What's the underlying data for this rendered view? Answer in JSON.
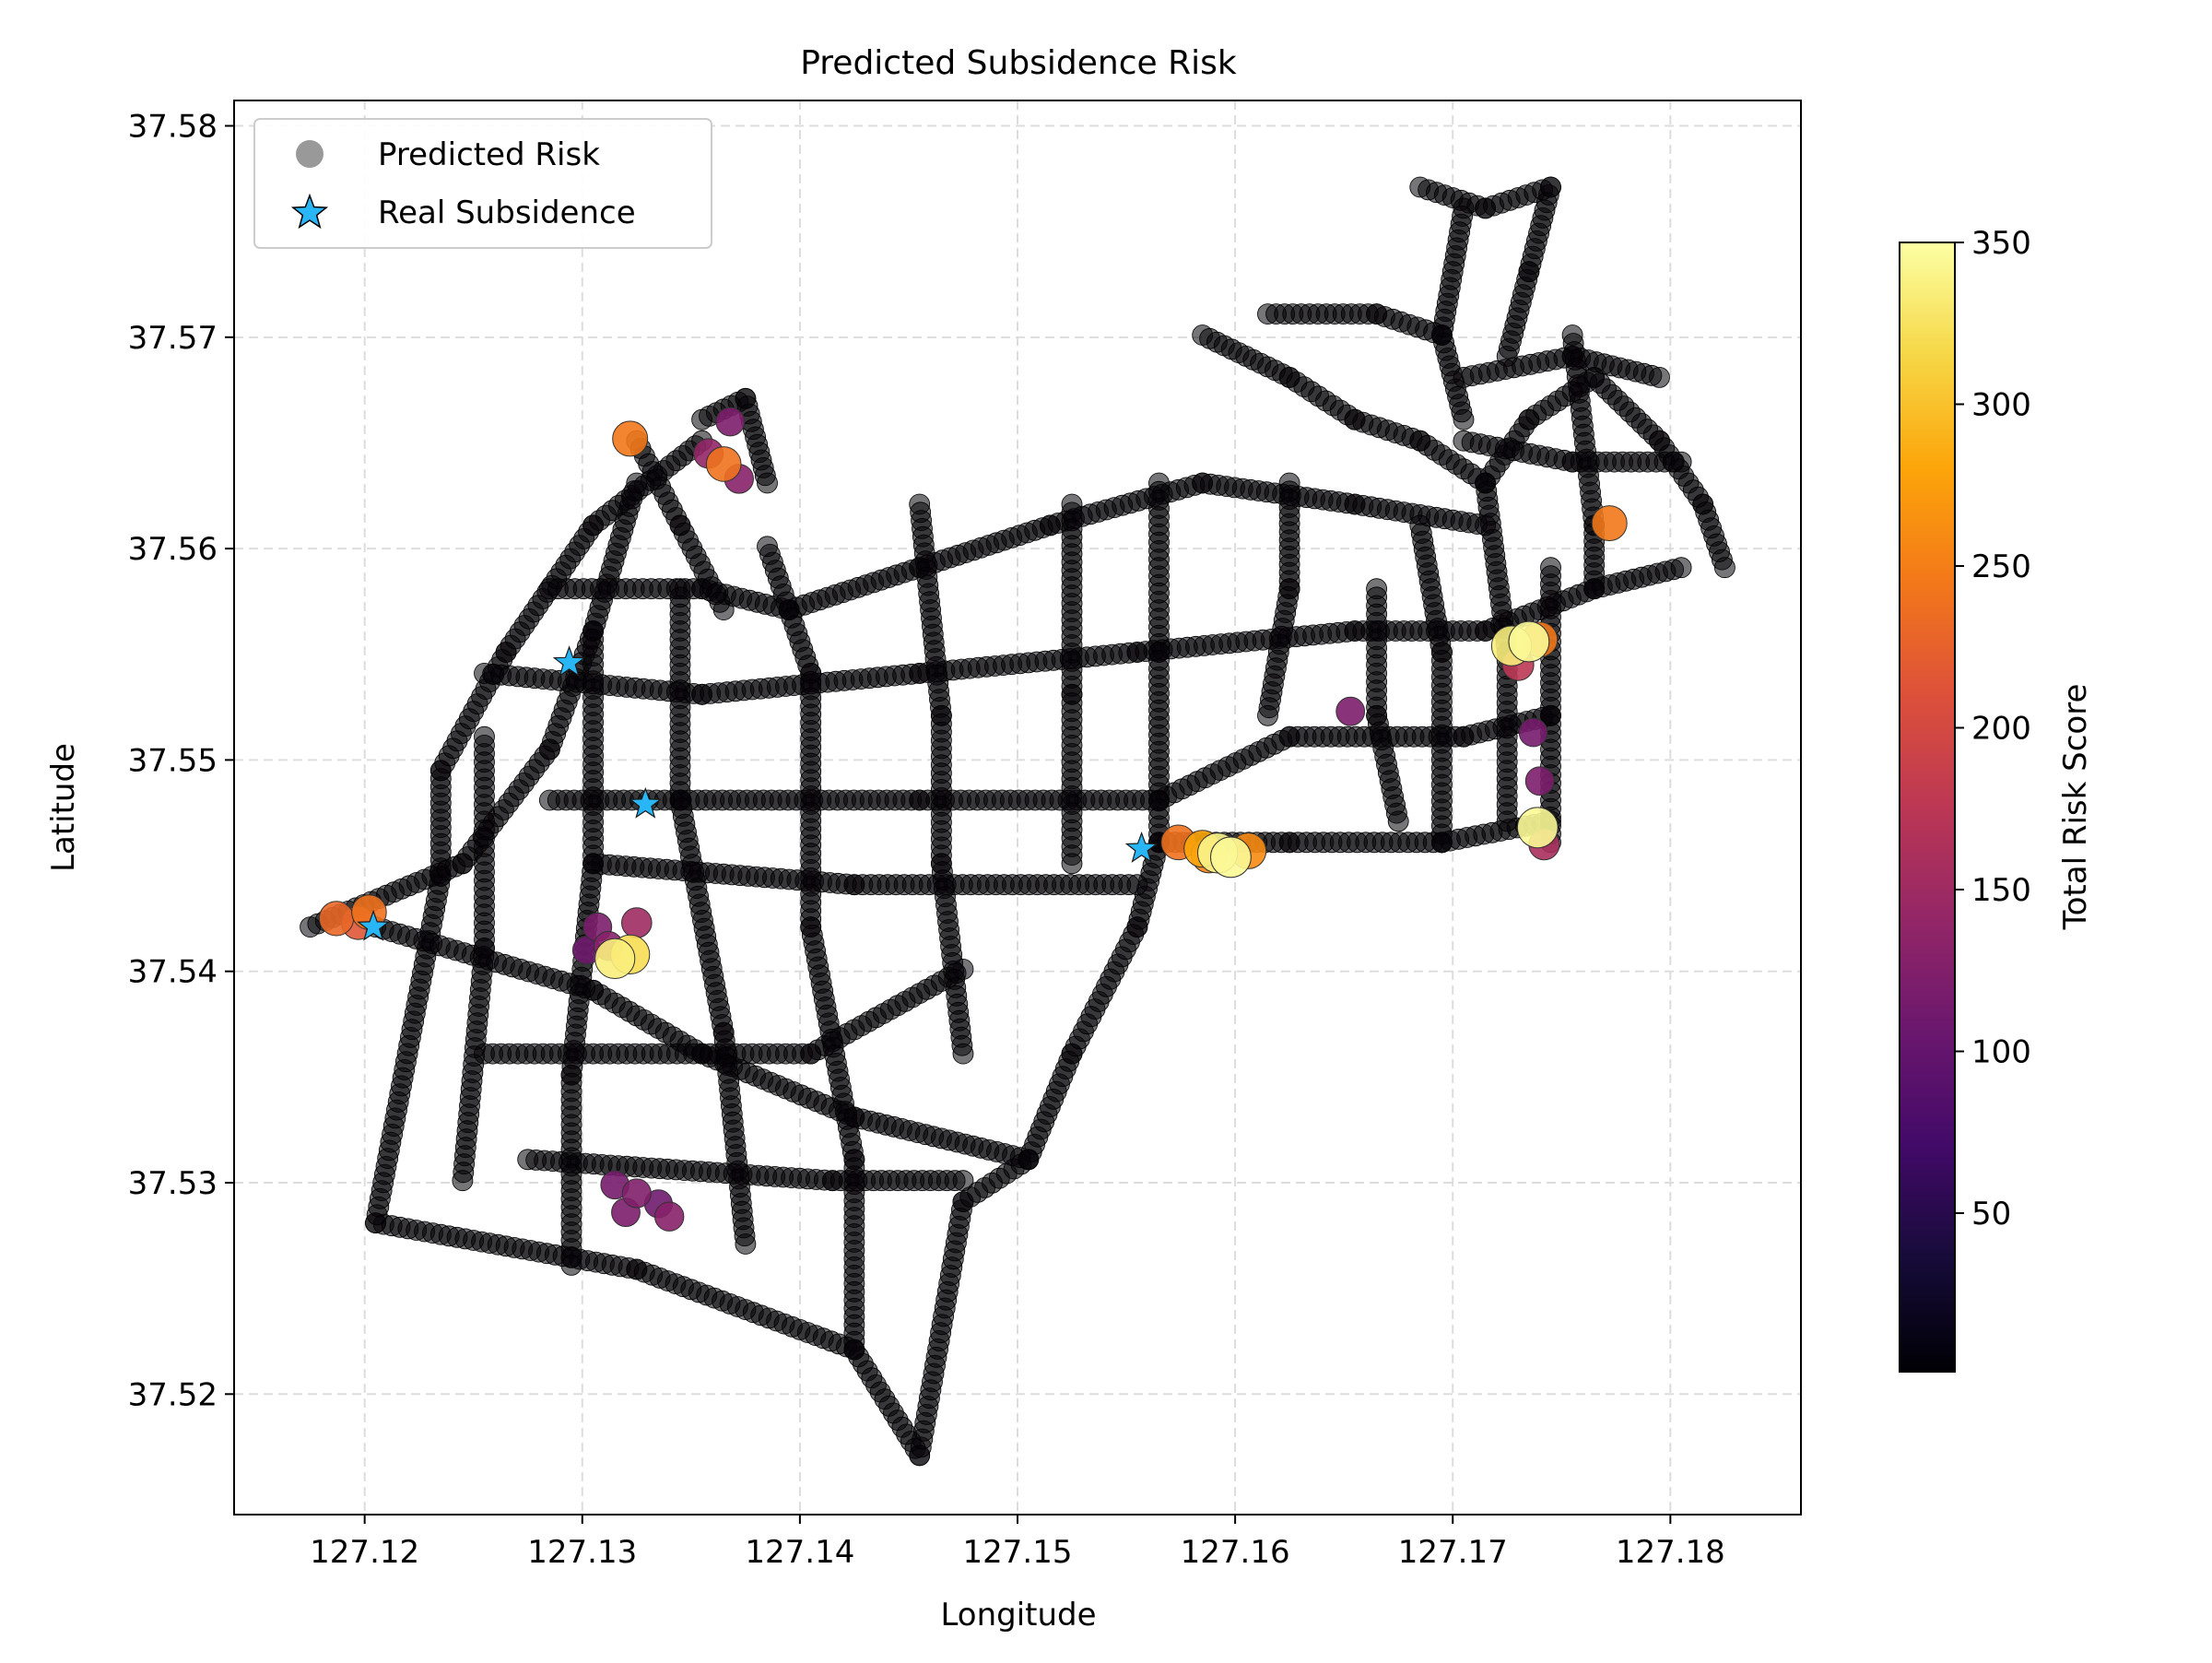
{
  "chart_data": {
    "type": "scatter",
    "title": "Predicted Subsidence Risk",
    "xlabel": "Longitude",
    "ylabel": "Latitude",
    "xlim": [
      127.114,
      127.186
    ],
    "ylim": [
      37.5143,
      37.5812
    ],
    "xticks": [
      "127.12",
      "127.13",
      "127.14",
      "127.15",
      "127.16",
      "127.17",
      "127.18"
    ],
    "xtick_values": [
      127.12,
      127.13,
      127.14,
      127.15,
      127.16,
      127.17,
      127.18
    ],
    "yticks": [
      "37.52",
      "37.53",
      "37.54",
      "37.55",
      "37.56",
      "37.57",
      "37.58"
    ],
    "ytick_values": [
      37.52,
      37.53,
      37.54,
      37.55,
      37.56,
      37.57,
      37.58
    ],
    "grid": true,
    "legend_position": "top-left",
    "legend": [
      "Predicted Risk",
      "Real Subsidence"
    ],
    "colorbar": {
      "label": "Total Risk Score",
      "colormap": "inferno",
      "range": [
        1,
        350
      ],
      "ticks": [
        "50",
        "100",
        "150",
        "200",
        "250",
        "300",
        "350"
      ],
      "tick_values": [
        50,
        100,
        150,
        200,
        250,
        300,
        350
      ]
    },
    "series": [
      {
        "name": "Predicted Risk",
        "marker": "circle",
        "network_segments": [
          [
            [
              127.1205,
              37.5281
            ],
            [
              127.1325,
              37.5259
            ],
            [
              127.1425,
              37.5221
            ],
            [
              127.1455,
              37.5171
            ]
          ],
          [
            [
              127.1205,
              37.5281
            ],
            [
              127.1235,
              37.5445
            ],
            [
              127.1235,
              37.5495
            ],
            [
              127.1265,
              37.5551
            ],
            [
              127.1305,
              37.5611
            ],
            [
              127.1355,
              37.5651
            ]
          ],
          [
            [
              127.1175,
              37.5421
            ],
            [
              127.1245,
              37.5451
            ],
            [
              127.1285,
              37.5505
            ],
            [
              127.1305,
              37.5561
            ],
            [
              127.1325,
              37.5631
            ]
          ],
          [
            [
              127.1205,
              37.5421
            ],
            [
              127.1305,
              37.5391
            ],
            [
              127.1355,
              37.5361
            ],
            [
              127.1425,
              37.5331
            ],
            [
              127.1505,
              37.5311
            ]
          ],
          [
            [
              127.1505,
              37.5311
            ],
            [
              127.1525,
              37.5361
            ],
            [
              127.1555,
              37.5421
            ],
            [
              127.1565,
              37.5461
            ]
          ],
          [
            [
              127.1455,
              37.5171
            ],
            [
              127.1475,
              37.5291
            ],
            [
              127.1505,
              37.5311
            ]
          ],
          [
            [
              127.1285,
              37.5581
            ],
            [
              127.1355,
              37.5581
            ],
            [
              127.1395,
              37.5571
            ],
            [
              127.1455,
              37.5591
            ],
            [
              127.1515,
              37.5611
            ],
            [
              127.1585,
              37.5631
            ],
            [
              127.1655,
              37.5621
            ],
            [
              127.1715,
              37.5611
            ]
          ],
          [
            [
              127.1255,
              37.5541
            ],
            [
              127.1355,
              37.5531
            ],
            [
              127.1455,
              37.5541
            ],
            [
              127.1555,
              37.5551
            ],
            [
              127.1655,
              37.5561
            ],
            [
              127.1715,
              37.5561
            ],
            [
              127.1765,
              37.5581
            ],
            [
              127.1805,
              37.5591
            ]
          ],
          [
            [
              127.1285,
              37.5481
            ],
            [
              127.1455,
              37.5481
            ],
            [
              127.1565,
              37.5481
            ],
            [
              127.1625,
              37.5511
            ],
            [
              127.1705,
              37.5511
            ],
            [
              127.1745,
              37.5521
            ]
          ],
          [
            [
              127.1565,
              37.5461
            ],
            [
              127.1625,
              37.5461
            ],
            [
              127.1695,
              37.5461
            ],
            [
              127.1745,
              37.5471
            ]
          ],
          [
            [
              127.1305,
              37.5451
            ],
            [
              127.1425,
              37.5441
            ],
            [
              127.1555,
              37.5441
            ]
          ],
          [
            [
              127.1255,
              37.5361
            ],
            [
              127.1405,
              37.5361
            ],
            [
              127.1475,
              37.5401
            ]
          ],
          [
            [
              127.1275,
              37.5311
            ],
            [
              127.1415,
              37.5301
            ],
            [
              127.1475,
              37.5301
            ]
          ],
          [
            [
              127.1385,
              37.5601
            ],
            [
              127.1405,
              37.5541
            ],
            [
              127.1405,
              37.5421
            ],
            [
              127.1425,
              37.5311
            ],
            [
              127.1425,
              37.5221
            ]
          ],
          [
            [
              127.1345,
              37.5581
            ],
            [
              127.1345,
              37.5481
            ],
            [
              127.1365,
              37.5371
            ],
            [
              127.1375,
              37.5271
            ]
          ],
          [
            [
              127.1305,
              37.5561
            ],
            [
              127.1305,
              37.5451
            ],
            [
              127.1295,
              37.5351
            ],
            [
              127.1295,
              37.5261
            ]
          ],
          [
            [
              127.1255,
              37.5511
            ],
            [
              127.1255,
              37.5411
            ],
            [
              127.1245,
              37.5301
            ]
          ],
          [
            [
              127.1455,
              37.5621
            ],
            [
              127.1465,
              37.5521
            ],
            [
              127.1465,
              37.5451
            ],
            [
              127.1475,
              37.5361
            ]
          ],
          [
            [
              127.1525,
              37.5621
            ],
            [
              127.1525,
              37.5531
            ],
            [
              127.1525,
              37.5451
            ]
          ],
          [
            [
              127.1565,
              37.5631
            ],
            [
              127.1565,
              37.5551
            ],
            [
              127.1565,
              37.5461
            ]
          ],
          [
            [
              127.1625,
              37.5631
            ],
            [
              127.1625,
              37.5581
            ],
            [
              127.1615,
              37.5521
            ]
          ],
          [
            [
              127.1685,
              37.5611
            ],
            [
              127.1695,
              37.5551
            ],
            [
              127.1695,
              37.5461
            ]
          ],
          [
            [
              127.1715,
              37.5631
            ],
            [
              127.1725,
              37.5551
            ],
            [
              127.1725,
              37.5471
            ]
          ],
          [
            [
              127.1745,
              37.5591
            ],
            [
              127.1745,
              37.5521
            ],
            [
              127.1745,
              37.5461
            ]
          ],
          [
            [
              127.1665,
              37.5581
            ],
            [
              127.1665,
              37.5521
            ],
            [
              127.1675,
              37.5471
            ]
          ],
          [
            [
              127.1715,
              37.5631
            ],
            [
              127.1735,
              37.5661
            ],
            [
              127.1765,
              37.5681
            ],
            [
              127.1795,
              37.5651
            ],
            [
              127.1815,
              37.5621
            ],
            [
              127.1825,
              37.5591
            ]
          ],
          [
            [
              127.1725,
              37.5691
            ],
            [
              127.1735,
              37.5731
            ],
            [
              127.1745,
              37.5771
            ]
          ],
          [
            [
              127.1685,
              37.5771
            ],
            [
              127.1715,
              37.5761
            ],
            [
              127.1745,
              37.5771
            ]
          ],
          [
            [
              127.1705,
              37.5761
            ],
            [
              127.1695,
              37.5701
            ],
            [
              127.1705,
              37.5661
            ]
          ],
          [
            [
              127.1705,
              37.5681
            ],
            [
              127.1755,
              37.5691
            ],
            [
              127.1795,
              37.5681
            ]
          ],
          [
            [
              127.1705,
              37.5651
            ],
            [
              127.1755,
              37.5641
            ],
            [
              127.1805,
              37.5641
            ]
          ],
          [
            [
              127.1755,
              37.5701
            ],
            [
              127.1765,
              37.5611
            ],
            [
              127.1765,
              37.5581
            ]
          ],
          [
            [
              127.1585,
              37.5701
            ],
            [
              127.1625,
              37.5681
            ],
            [
              127.1655,
              37.5661
            ],
            [
              127.1685,
              37.5651
            ],
            [
              127.1715,
              37.5631
            ]
          ],
          [
            [
              127.1615,
              37.5711
            ],
            [
              127.1665,
              37.5711
            ],
            [
              127.1695,
              37.5701
            ]
          ],
          [
            [
              127.1325,
              37.5651
            ],
            [
              127.1345,
              37.5611
            ],
            [
              127.1365,
              37.5571
            ]
          ],
          [
            [
              127.1355,
              37.5661
            ],
            [
              127.1375,
              37.5671
            ],
            [
              127.1385,
              37.5631
            ]
          ]
        ]
      },
      {
        "name": "Predicted Risk (scored)",
        "marker": "circle",
        "points": [
          {
            "x": 127.1187,
            "y": 37.5425,
            "score": 230
          },
          {
            "x": 127.1197,
            "y": 37.5423,
            "score": 215
          },
          {
            "x": 127.1202,
            "y": 37.5428,
            "score": 240
          },
          {
            "x": 127.1322,
            "y": 37.5652,
            "score": 245
          },
          {
            "x": 127.1365,
            "y": 37.564,
            "score": 240
          },
          {
            "x": 127.1358,
            "y": 37.5645,
            "score": 140
          },
          {
            "x": 127.1368,
            "y": 37.566,
            "score": 120
          },
          {
            "x": 127.1372,
            "y": 37.5633,
            "score": 130
          },
          {
            "x": 127.1772,
            "y": 37.5612,
            "score": 245
          },
          {
            "x": 127.1307,
            "y": 37.5421,
            "score": 120
          },
          {
            "x": 127.1312,
            "y": 37.5412,
            "score": 130
          },
          {
            "x": 127.1302,
            "y": 37.541,
            "score": 110
          },
          {
            "x": 127.1322,
            "y": 37.5408,
            "score": 320
          },
          {
            "x": 127.1315,
            "y": 37.5406,
            "score": 335
          },
          {
            "x": 127.1325,
            "y": 37.5423,
            "score": 150
          },
          {
            "x": 127.1315,
            "y": 37.5299,
            "score": 115
          },
          {
            "x": 127.1325,
            "y": 37.5295,
            "score": 125
          },
          {
            "x": 127.1335,
            "y": 37.529,
            "score": 110
          },
          {
            "x": 127.132,
            "y": 37.5286,
            "score": 120
          },
          {
            "x": 127.134,
            "y": 37.5284,
            "score": 130
          },
          {
            "x": 127.1574,
            "y": 37.5461,
            "score": 240
          },
          {
            "x": 127.1585,
            "y": 37.5458,
            "score": 280
          },
          {
            "x": 127.1592,
            "y": 37.5456,
            "score": 340
          },
          {
            "x": 127.1598,
            "y": 37.5454,
            "score": 345
          },
          {
            "x": 127.1606,
            "y": 37.5457,
            "score": 260
          },
          {
            "x": 127.1588,
            "y": 37.5455,
            "score": 255
          },
          {
            "x": 127.1727,
            "y": 37.5554,
            "score": 335
          },
          {
            "x": 127.1735,
            "y": 37.5556,
            "score": 345
          },
          {
            "x": 127.174,
            "y": 37.5557,
            "score": 245
          },
          {
            "x": 127.173,
            "y": 37.5545,
            "score": 175
          },
          {
            "x": 127.1739,
            "y": 37.5468,
            "score": 345
          },
          {
            "x": 127.1742,
            "y": 37.546,
            "score": 160
          },
          {
            "x": 127.1653,
            "y": 37.5523,
            "score": 120
          },
          {
            "x": 127.1737,
            "y": 37.5513,
            "score": 115
          },
          {
            "x": 127.174,
            "y": 37.549,
            "score": 120
          }
        ]
      },
      {
        "name": "Real Subsidence",
        "marker": "star",
        "color": "#29b6f6",
        "points": [
          {
            "x": 127.1294,
            "y": 37.5546
          },
          {
            "x": 127.1329,
            "y": 37.5479
          },
          {
            "x": 127.1204,
            "y": 37.5421
          },
          {
            "x": 127.1557,
            "y": 37.5458
          }
        ]
      }
    ]
  }
}
